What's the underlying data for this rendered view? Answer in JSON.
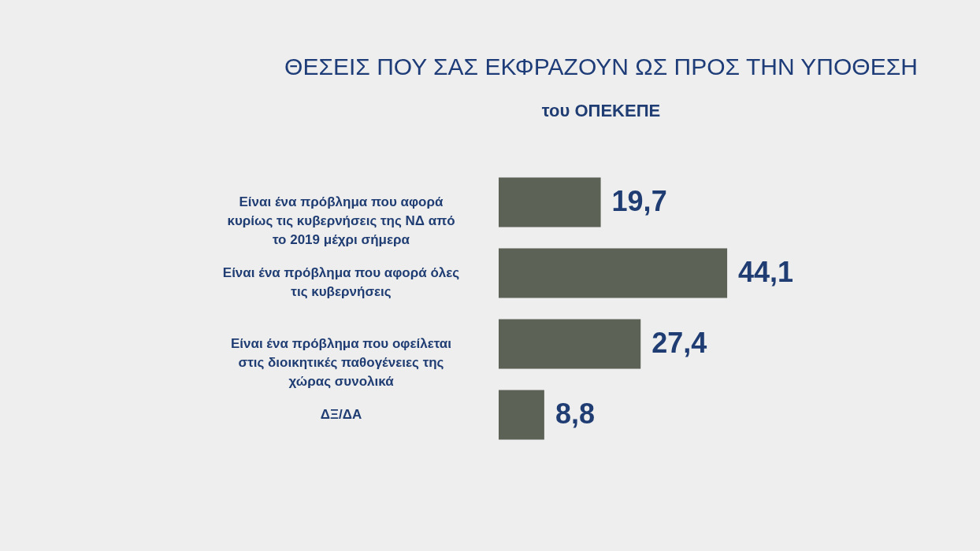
{
  "chart_data": {
    "type": "bar",
    "orientation": "horizontal",
    "title": "ΘΕΣΕΙΣ ΠΟΥ ΣΑΣ ΕΚΦΡΑΖΟΥΝ ΩΣ ΠΡΟΣ ΤΗΝ ΥΠΟΘΕΣΗ",
    "subtitle": "του ΟΠΕΚΕΠΕ",
    "categories": [
      "Είναι ένα πρόβλημα που αφορά κυρίως τις κυβερνήσεις της ΝΔ από το 2019 μέχρι σήμερα",
      "Είναι ένα πρόβλημα που αφορά όλες τις κυβερνήσεις",
      "Είναι ένα πρόβλημα που οφείλεται στις διοικητικές παθογένειες της χώρας συνολικά",
      "ΔΞ/ΔΑ"
    ],
    "values": [
      19.7,
      44.1,
      27.4,
      8.8
    ],
    "color": "#5c6356",
    "data_labels": true,
    "value_labels": [
      "19,7",
      "44,1",
      "27,4",
      "8,8"
    ]
  }
}
